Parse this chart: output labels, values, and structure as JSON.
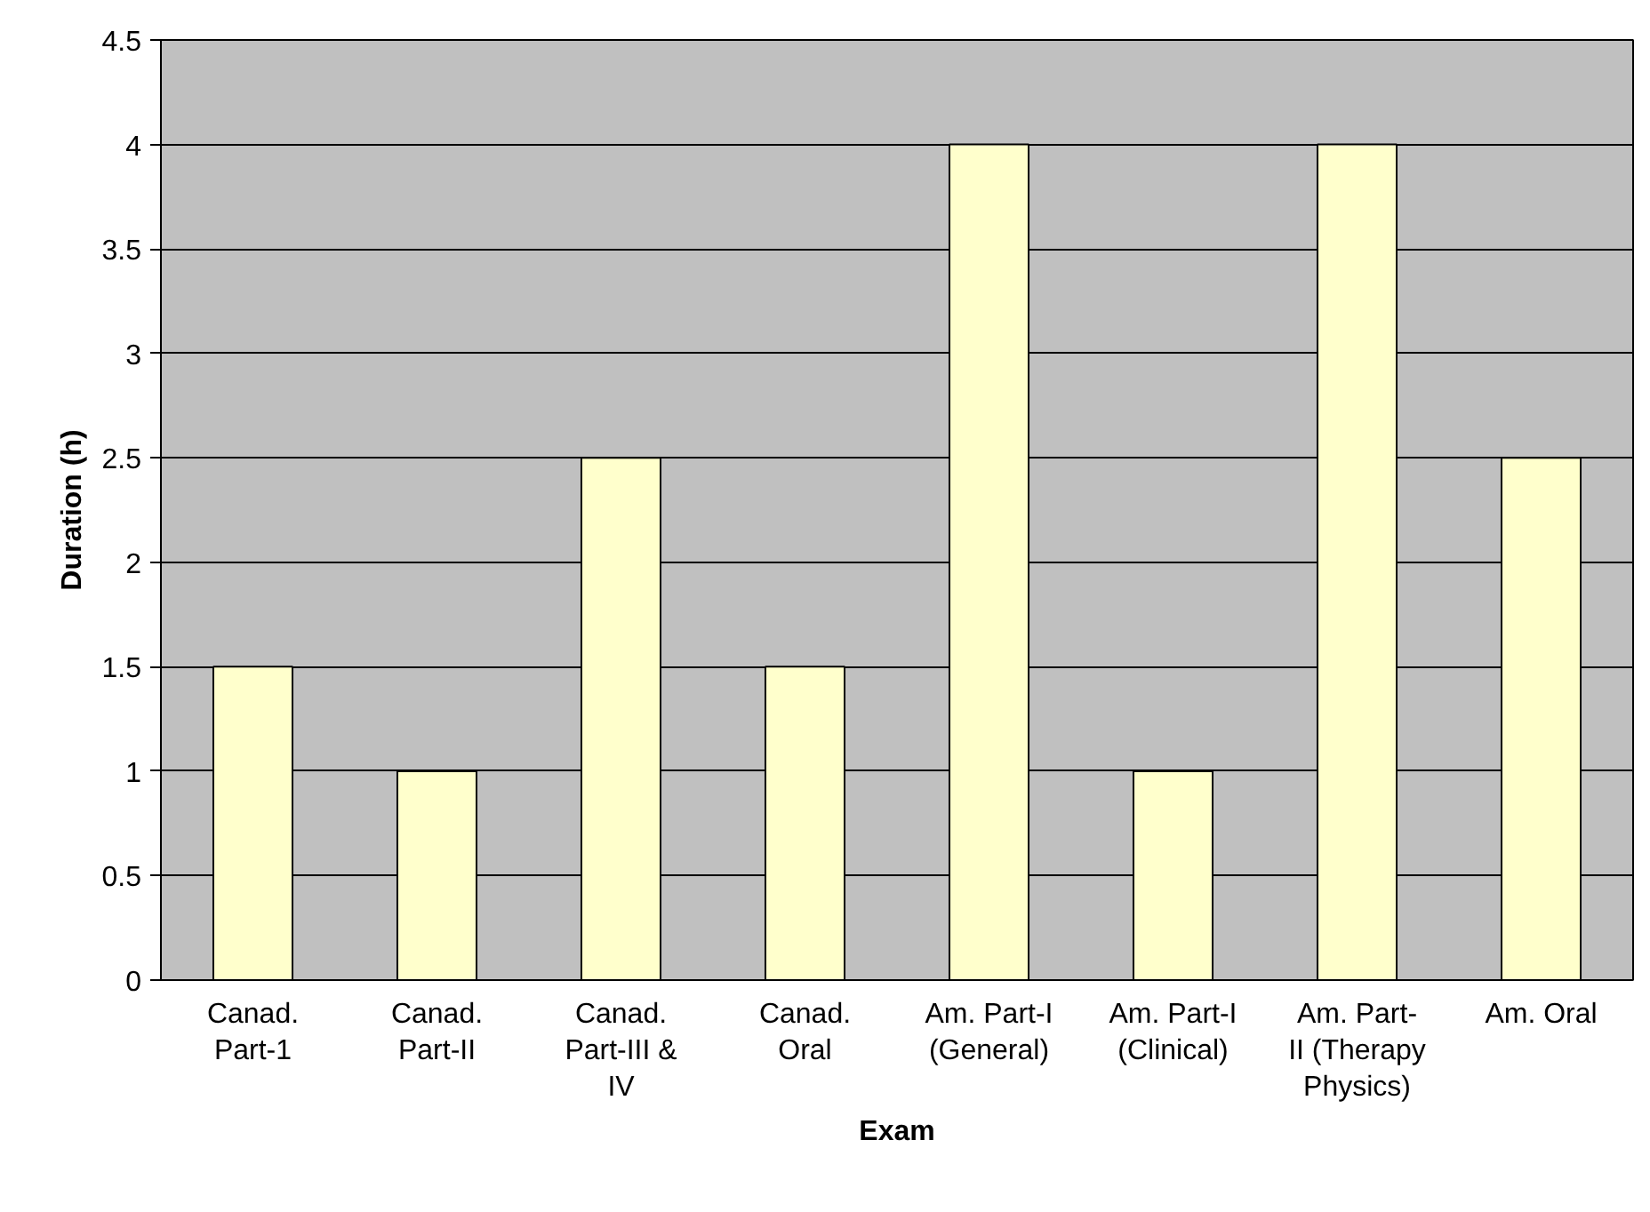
{
  "chart_data": {
    "type": "bar",
    "categories": [
      "Canad.\nPart-1",
      "Canad.\nPart-II",
      "Canad.\nPart-III &\nIV",
      "Canad.\nOral",
      "Am. Part-I\n(General)",
      "Am. Part-I\n(Clinical)",
      "Am. Part-\nII (Therapy\nPhysics)",
      "Am. Oral"
    ],
    "values": [
      1.5,
      1,
      2.5,
      1.5,
      4,
      1,
      4,
      2.5
    ],
    "color": "#ffffcc",
    "xlabel": "Exam",
    "ylabel": "Duration (h)",
    "ylim": [
      0,
      4.5
    ],
    "yticks": [
      0,
      0.5,
      1,
      1.5,
      2,
      2.5,
      3,
      3.5,
      4,
      4.5
    ],
    "grid": "y"
  }
}
